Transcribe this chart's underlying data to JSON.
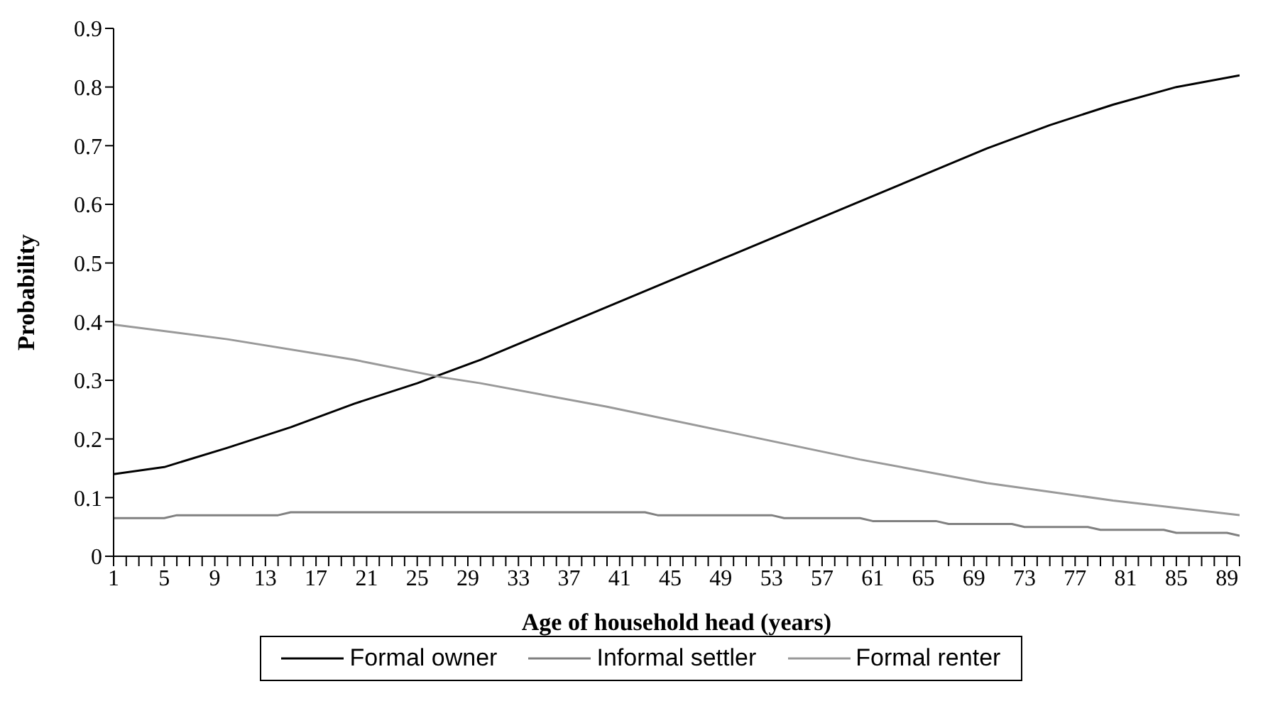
{
  "chart_data": {
    "type": "line",
    "xlabel": "Age of household head (years)",
    "ylabel": "Probability",
    "xlim": [
      1,
      90
    ],
    "ylim": [
      0,
      0.9
    ],
    "yticks": [
      0,
      0.1,
      0.2,
      0.3,
      0.4,
      0.5,
      0.6,
      0.7,
      0.8,
      0.9
    ],
    "xticks": [
      1,
      {
        "value": 2,
        "label": null
      },
      {
        "value": 3,
        "label": null
      },
      {
        "value": 4,
        "label": null
      },
      5,
      {
        "value": 6,
        "label": null
      },
      {
        "value": 7,
        "label": null
      },
      {
        "value": 8,
        "label": null
      },
      9,
      {
        "value": 10,
        "label": null
      },
      {
        "value": 11,
        "label": null
      },
      {
        "value": 12,
        "label": null
      },
      13,
      {
        "value": 14,
        "label": null
      },
      {
        "value": 15,
        "label": null
      },
      {
        "value": 16,
        "label": null
      },
      17,
      {
        "value": 18,
        "label": null
      },
      {
        "value": 19,
        "label": null
      },
      {
        "value": 20,
        "label": null
      },
      21,
      {
        "value": 22,
        "label": null
      },
      {
        "value": 23,
        "label": null
      },
      {
        "value": 24,
        "label": null
      },
      25,
      {
        "value": 26,
        "label": null
      },
      {
        "value": 27,
        "label": null
      },
      {
        "value": 28,
        "label": null
      },
      29,
      {
        "value": 30,
        "label": null
      },
      {
        "value": 31,
        "label": null
      },
      {
        "value": 32,
        "label": null
      },
      33,
      {
        "value": 34,
        "label": null
      },
      {
        "value": 35,
        "label": null
      },
      {
        "value": 36,
        "label": null
      },
      37,
      {
        "value": 38,
        "label": null
      },
      {
        "value": 39,
        "label": null
      },
      {
        "value": 40,
        "label": null
      },
      41,
      {
        "value": 42,
        "label": null
      },
      {
        "value": 43,
        "label": null
      },
      {
        "value": 44,
        "label": null
      },
      45,
      {
        "value": 46,
        "label": null
      },
      {
        "value": 47,
        "label": null
      },
      {
        "value": 48,
        "label": null
      },
      49,
      {
        "value": 50,
        "label": null
      },
      {
        "value": 51,
        "label": null
      },
      {
        "value": 52,
        "label": null
      },
      53,
      {
        "value": 54,
        "label": null
      },
      {
        "value": 55,
        "label": null
      },
      {
        "value": 56,
        "label": null
      },
      57,
      {
        "value": 58,
        "label": null
      },
      {
        "value": 59,
        "label": null
      },
      {
        "value": 60,
        "label": null
      },
      61,
      {
        "value": 62,
        "label": null
      },
      {
        "value": 63,
        "label": null
      },
      {
        "value": 64,
        "label": null
      },
      65,
      {
        "value": 66,
        "label": null
      },
      {
        "value": 67,
        "label": null
      },
      {
        "value": 68,
        "label": null
      },
      69,
      {
        "value": 70,
        "label": null
      },
      {
        "value": 71,
        "label": null
      },
      {
        "value": 72,
        "label": null
      },
      73,
      {
        "value": 74,
        "label": null
      },
      {
        "value": 75,
        "label": null
      },
      {
        "value": 76,
        "label": null
      },
      77,
      {
        "value": 78,
        "label": null
      },
      {
        "value": 79,
        "label": null
      },
      {
        "value": 80,
        "label": null
      },
      81,
      {
        "value": 82,
        "label": null
      },
      {
        "value": 83,
        "label": null
      },
      {
        "value": 84,
        "label": null
      },
      85,
      {
        "value": 86,
        "label": null
      },
      {
        "value": 87,
        "label": null
      },
      {
        "value": 88,
        "label": null
      },
      89,
      {
        "value": 90,
        "label": null
      }
    ],
    "grid": false,
    "legend": "bottom",
    "marker": "none",
    "line_style": "solid",
    "series": [
      {
        "name": "Formal owner",
        "color": "#000000",
        "x": [
          1,
          5,
          10,
          15,
          20,
          25,
          30,
          35,
          40,
          45,
          50,
          55,
          60,
          65,
          70,
          75,
          80,
          85,
          90
        ],
        "values": [
          0.14,
          0.152,
          0.185,
          0.22,
          0.26,
          0.295,
          0.335,
          0.38,
          0.425,
          0.47,
          0.515,
          0.56,
          0.605,
          0.65,
          0.695,
          0.735,
          0.77,
          0.8,
          0.82
        ]
      },
      {
        "name": "Informal settler",
        "color": "#808080",
        "x": [
          1,
          5,
          6,
          14,
          15,
          43,
          44,
          53,
          54,
          60,
          61,
          66,
          67,
          72,
          73,
          78,
          79,
          84,
          85,
          89,
          90
        ],
        "values": [
          0.065,
          0.065,
          0.07,
          0.07,
          0.075,
          0.075,
          0.07,
          0.07,
          0.065,
          0.065,
          0.06,
          0.06,
          0.055,
          0.055,
          0.05,
          0.05,
          0.045,
          0.045,
          0.04,
          0.04,
          0.035
        ]
      },
      {
        "name": "Formal renter",
        "color": "#999999",
        "x": [
          1,
          10,
          20,
          27,
          30,
          40,
          50,
          60,
          70,
          80,
          90
        ],
        "values": [
          0.395,
          0.37,
          0.335,
          0.305,
          0.295,
          0.255,
          0.21,
          0.165,
          0.125,
          0.095,
          0.07
        ]
      }
    ]
  }
}
